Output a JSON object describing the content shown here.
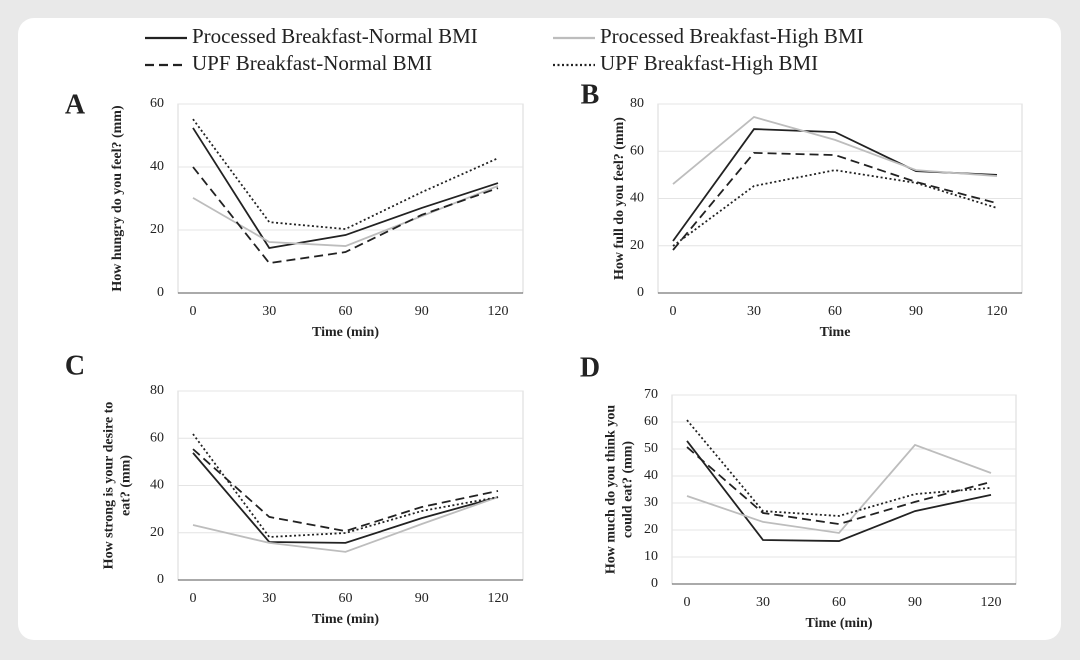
{
  "legend": {
    "series": [
      {
        "name": "Processed Breakfast-Normal BMI",
        "color": "#222222",
        "dash": "solid"
      },
      {
        "name": "Processed Breakfast-High BMI",
        "color": "#bdbdbd",
        "dash": "solid"
      },
      {
        "name": "UPF Breakfast-Normal BMI",
        "color": "#222222",
        "dash": "dashed"
      },
      {
        "name": "UPF Breakfast-High BMI",
        "color": "#222222",
        "dash": "dotted"
      }
    ]
  },
  "chart_data": [
    {
      "type": "line",
      "panel": "A",
      "xlabel": "Time (min)",
      "ylabel": [
        "How hungry do you feel?  (mm)"
      ],
      "categories": [
        "0",
        "30",
        "60",
        "90",
        "120"
      ],
      "ylim": [
        0,
        60
      ],
      "yticks": [
        0,
        20,
        40,
        60
      ],
      "grid": true,
      "series": [
        {
          "values": [
            52.4,
            14.3,
            18.4,
            27,
            34.9
          ]
        },
        {
          "values": [
            30.2,
            16.2,
            14.9,
            24.4,
            34
          ]
        },
        {
          "values": [
            40,
            9.5,
            13,
            24.8,
            33.3
          ]
        },
        {
          "values": [
            55.2,
            22.5,
            20.3,
            32,
            42.8
          ]
        }
      ]
    },
    {
      "type": "line",
      "panel": "B",
      "xlabel": "Time",
      "ylabel": [
        "How full do you feel? (mm)"
      ],
      "categories": [
        "0",
        "30",
        "60",
        "90",
        "120"
      ],
      "ylim": [
        0,
        80
      ],
      "yticks": [
        0,
        20,
        40,
        60,
        80
      ],
      "grid": true,
      "series": [
        {
          "values": [
            22,
            69.4,
            68.1,
            51.6,
            50
          ]
        },
        {
          "values": [
            46.1,
            74.5,
            64.8,
            52,
            49.5
          ]
        },
        {
          "values": [
            18.2,
            59.3,
            58.4,
            47,
            38
          ]
        },
        {
          "values": [
            19.9,
            45.3,
            52,
            46.6,
            36
          ]
        }
      ]
    },
    {
      "type": "line",
      "panel": "C",
      "xlabel": "Time (min)",
      "ylabel": [
        "How strong is your desire to",
        "eat? (mm)"
      ],
      "categories": [
        "0",
        "30",
        "60",
        "90",
        "120"
      ],
      "ylim": [
        0,
        80
      ],
      "yticks": [
        0,
        20,
        40,
        60,
        80
      ],
      "grid": true,
      "series": [
        {
          "values": [
            53.8,
            16.1,
            15.7,
            26.2,
            35.1
          ]
        },
        {
          "values": [
            23.3,
            15.7,
            11.9,
            23.7,
            35.1
          ]
        },
        {
          "values": [
            55.4,
            26.7,
            20.7,
            30.9,
            37.7
          ]
        },
        {
          "values": [
            61.8,
            18.2,
            19.9,
            29.2,
            35.1
          ]
        }
      ]
    },
    {
      "type": "line",
      "panel": "D",
      "xlabel": "Time (min)",
      "ylabel": [
        "How much do you think you",
        "could eat? (mm)"
      ],
      "categories": [
        "0",
        "30",
        "60",
        "90",
        "120"
      ],
      "ylim": [
        0,
        70
      ],
      "yticks": [
        0,
        10,
        20,
        30,
        40,
        50,
        60,
        70
      ],
      "grid": true,
      "series": [
        {
          "values": [
            53,
            16.3,
            15.9,
            27,
            33
          ]
        },
        {
          "values": [
            32.6,
            23,
            18.9,
            51.5,
            41.1
          ]
        },
        {
          "values": [
            50.7,
            26.3,
            22.2,
            30.4,
            37.8
          ]
        },
        {
          "values": [
            60.7,
            27,
            25.2,
            33.3,
            35.6
          ]
        }
      ]
    }
  ]
}
